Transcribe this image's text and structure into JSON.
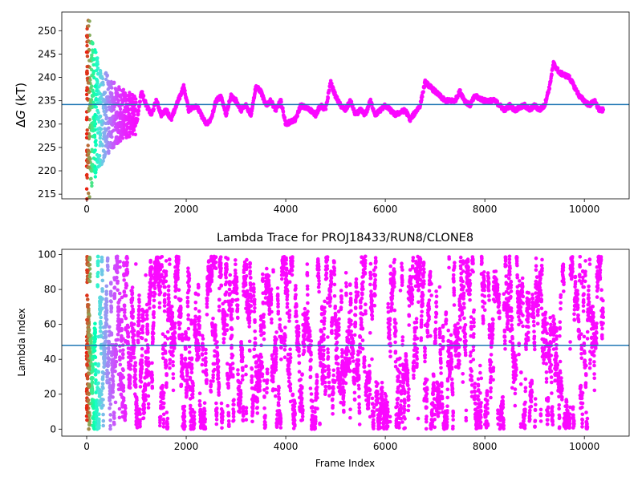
{
  "chart_data": [
    {
      "type": "scatter",
      "title": "",
      "xlabel": "",
      "ylabel": "ΔG (kT)",
      "ylabel_parts": [
        "Δ",
        "G",
        " (kT)"
      ],
      "xlim": [
        -500,
        10900
      ],
      "ylim": [
        214,
        254
      ],
      "xticks": [
        0,
        2000,
        4000,
        6000,
        8000,
        10000
      ],
      "yticks": [
        215,
        220,
        225,
        230,
        235,
        240,
        245,
        250
      ],
      "hline": {
        "y": 234.2,
        "color": "#1f77b4"
      },
      "colormap": "rainbow (reversed over frame index)",
      "series": [
        {
          "x_range": [
            0,
            10380
          ],
          "trace_anchors": [
            [
              1000,
              230
            ],
            [
              1100,
              237
            ],
            [
              1200,
              234
            ],
            [
              1300,
              232
            ],
            [
              1400,
              235
            ],
            [
              1500,
              232
            ],
            [
              1600,
              233
            ],
            [
              1700,
              231
            ],
            [
              1800,
              234
            ],
            [
              1950,
              238
            ],
            [
              2050,
              233
            ],
            [
              2200,
              234
            ],
            [
              2300,
              232
            ],
            [
              2400,
              230
            ],
            [
              2500,
              231
            ],
            [
              2600,
              235
            ],
            [
              2700,
              236
            ],
            [
              2800,
              232
            ],
            [
              2900,
              236
            ],
            [
              3000,
              235
            ],
            [
              3100,
              233
            ],
            [
              3200,
              234
            ],
            [
              3300,
              232
            ],
            [
              3400,
              238
            ],
            [
              3500,
              237
            ],
            [
              3600,
              234
            ],
            [
              3700,
              235
            ],
            [
              3800,
              233
            ],
            [
              3900,
              235
            ],
            [
              4000,
              230
            ],
            [
              4200,
              231
            ],
            [
              4300,
              234
            ],
            [
              4500,
              233
            ],
            [
              4600,
              232
            ],
            [
              4700,
              234
            ],
            [
              4800,
              233
            ],
            [
              4900,
              239
            ],
            [
              5000,
              236
            ],
            [
              5100,
              234
            ],
            [
              5200,
              233
            ],
            [
              5300,
              235
            ],
            [
              5400,
              232
            ],
            [
              5500,
              233
            ],
            [
              5600,
              232
            ],
            [
              5700,
              235
            ],
            [
              5800,
              232
            ],
            [
              6000,
              234
            ],
            [
              6200,
              232
            ],
            [
              6400,
              233
            ],
            [
              6500,
              231
            ],
            [
              6700,
              234
            ],
            [
              6800,
              239
            ],
            [
              7000,
              237
            ],
            [
              7200,
              235
            ],
            [
              7400,
              235
            ],
            [
              7500,
              237
            ],
            [
              7600,
              235
            ],
            [
              7700,
              234
            ],
            [
              7800,
              236
            ],
            [
              8000,
              235
            ],
            [
              8200,
              235
            ],
            [
              8400,
              233
            ],
            [
              8500,
              234
            ],
            [
              8600,
              233
            ],
            [
              8800,
              234
            ],
            [
              8900,
              233
            ],
            [
              9000,
              234
            ],
            [
              9100,
              233
            ],
            [
              9200,
              234
            ],
            [
              9300,
              238
            ],
            [
              9380,
              243
            ],
            [
              9500,
              241
            ],
            [
              9700,
              240
            ],
            [
              9800,
              238
            ],
            [
              9900,
              236
            ],
            [
              10000,
              235
            ],
            [
              10100,
              234
            ],
            [
              10200,
              235
            ],
            [
              10300,
              233
            ],
            [
              10380,
              233
            ]
          ]
        }
      ]
    },
    {
      "type": "scatter",
      "title": "Lambda Trace for PROJ18433/RUN8/CLONE8",
      "xlabel": "Frame Index",
      "ylabel": "Lambda Index",
      "xlim": [
        -500,
        10900
      ],
      "ylim": [
        -4,
        103
      ],
      "xticks": [
        0,
        2000,
        4000,
        6000,
        8000,
        10000
      ],
      "yticks": [
        0,
        20,
        40,
        60,
        80,
        100
      ],
      "hline": {
        "y": 48,
        "color": "#1f77b4"
      },
      "colormap": "rainbow (reversed over frame index)",
      "series": [
        {
          "x_range": [
            0,
            10380
          ],
          "y_range": [
            0,
            100
          ]
        }
      ]
    }
  ]
}
